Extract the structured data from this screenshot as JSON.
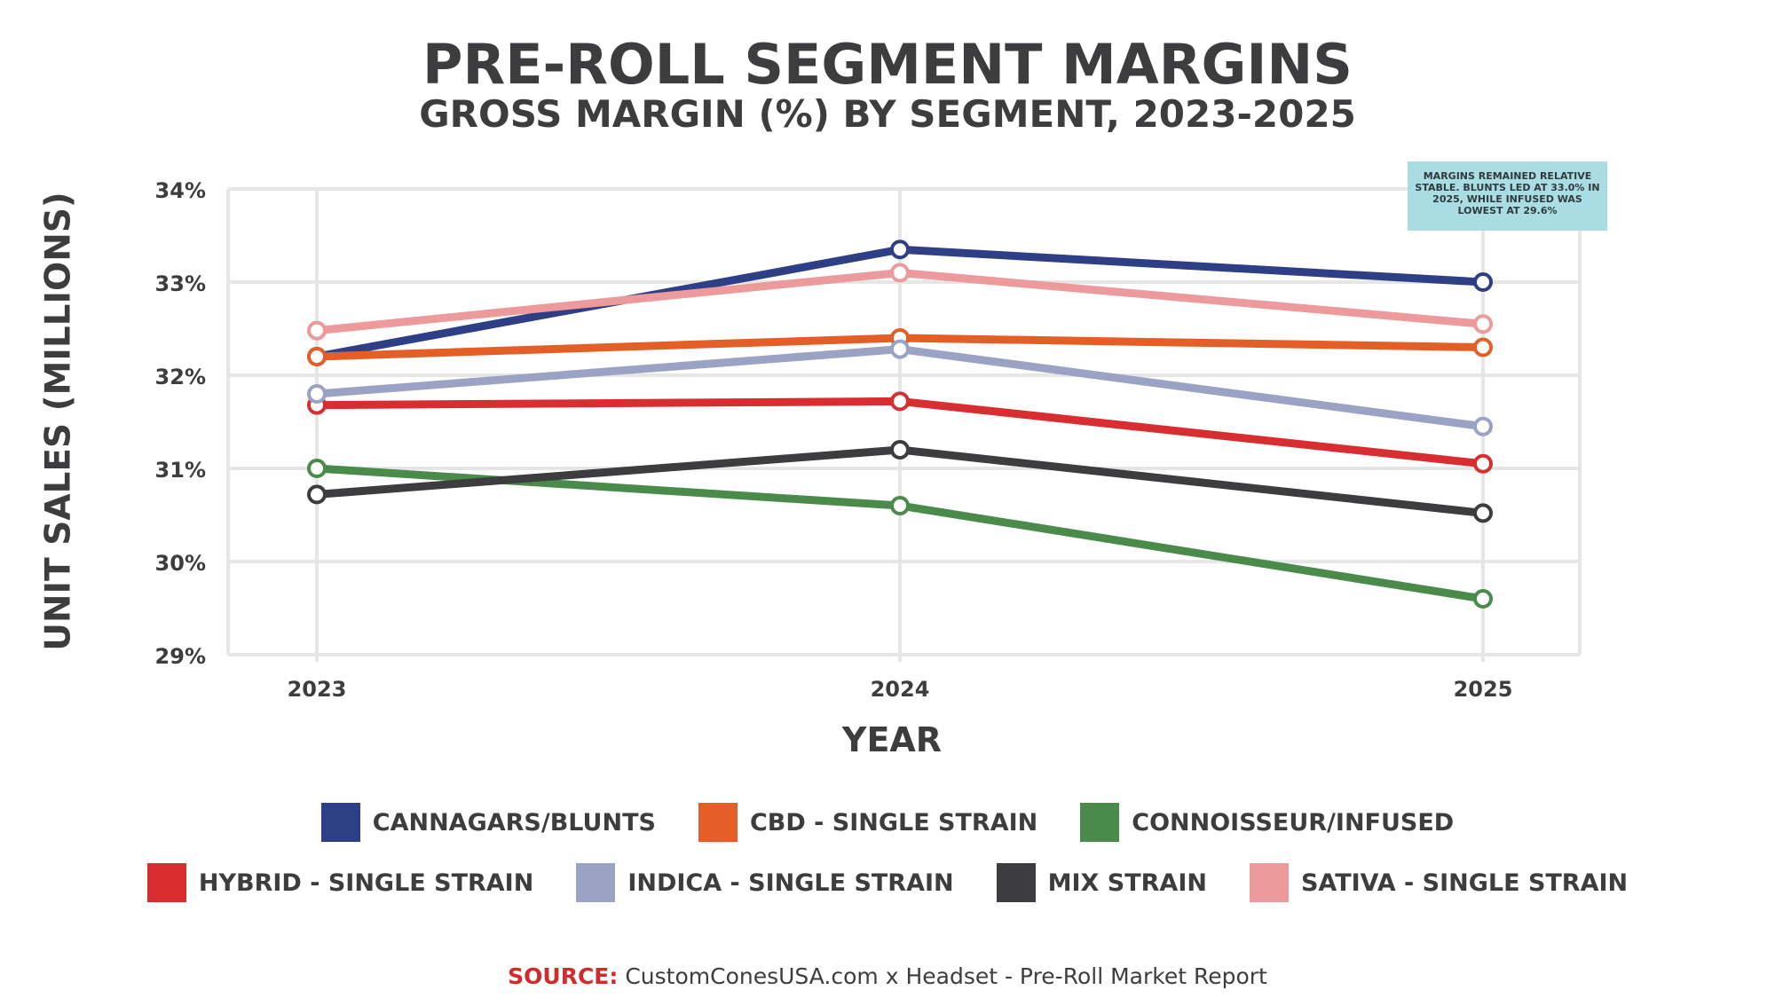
{
  "title": "PRE-ROLL SEGMENT MARGINS",
  "subtitle": "GROSS MARGIN (%) BY SEGMENT, 2023-2025",
  "annotation": "MARGINS REMAINED RELATIVE STABLE. BLUNTS LED AT 33.0% IN 2025, WHILE INFUSED WAS LOWEST AT 29.6%",
  "source": {
    "key": "SOURCE:",
    "text": "CustomConesUSA.com x Headset - Pre-Roll Market Report"
  },
  "colors": {
    "background": "#ffffff",
    "grid": "#e6e6e6",
    "text": "#3d3d3f",
    "annotation_bg": "#a9dde3",
    "source_key": "#d12c2c"
  },
  "chart_data": {
    "type": "line",
    "title": "PRE-ROLL SEGMENT MARGINS",
    "subtitle": "GROSS MARGIN (%) BY SEGMENT, 2023-2025",
    "xlabel": "YEAR",
    "ylabel": "UNIT SALES (MILLIONS)",
    "x": [
      "2023",
      "2024",
      "2025"
    ],
    "ylim": [
      29,
      34
    ],
    "yticks": [
      29,
      30,
      31,
      32,
      33,
      34
    ],
    "ytick_labels": [
      "29%",
      "30%",
      "31%",
      "32%",
      "33%",
      "34%"
    ],
    "grid": true,
    "legend_position": "bottom",
    "series": [
      {
        "name": "CANNAGARS/BLUNTS",
        "color": "#2e3f86",
        "values": [
          32.2,
          33.35,
          33.0
        ]
      },
      {
        "name": "CBD - SINGLE STRAIN",
        "color": "#e45f27",
        "values": [
          32.2,
          32.4,
          32.3
        ]
      },
      {
        "name": "CONNOISSEUR/INFUSED",
        "color": "#4a8a4b",
        "values": [
          31.0,
          30.6,
          29.6
        ]
      },
      {
        "name": "HYBRID - SINGLE STRAIN",
        "color": "#d92e31",
        "values": [
          31.68,
          31.72,
          31.05
        ]
      },
      {
        "name": "INDICA - SINGLE STRAIN",
        "color": "#9ba3c5",
        "values": [
          31.8,
          32.28,
          31.45
        ]
      },
      {
        "name": "MIX STRAIN",
        "color": "#3d3d3f",
        "values": [
          30.72,
          31.2,
          30.52
        ]
      },
      {
        "name": "SATIVA - SINGLE STRAIN",
        "color": "#ec9a9c",
        "values": [
          32.48,
          33.1,
          32.55
        ]
      }
    ]
  }
}
